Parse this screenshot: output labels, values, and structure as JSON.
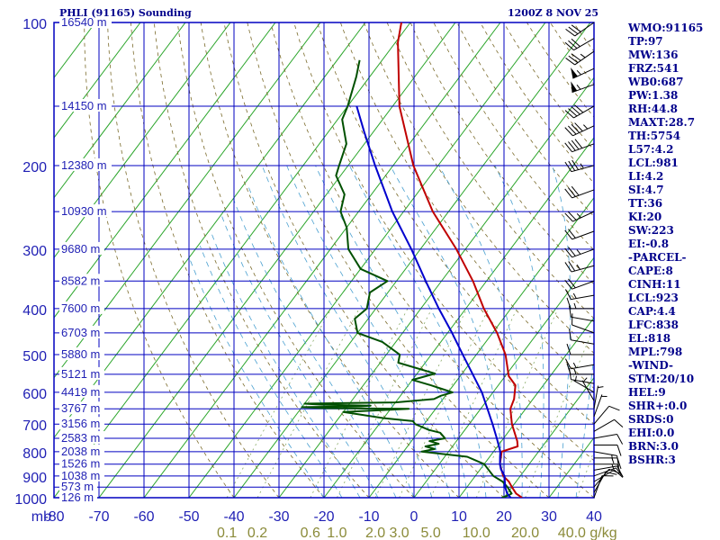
{
  "header": {
    "station": "PHLI (91165) Sounding",
    "time": "1200Z  8 NOV 25"
  },
  "colors": {
    "axis": "#0000c0",
    "label": "#1f1fb4",
    "isotherm": "#2aa52a",
    "dry_adiabat": "#7a6a2a",
    "moist_adiabat": "#4aa0d0",
    "mixing": "#88aa66",
    "temperature": "#c00000",
    "dewpoint": "#005000",
    "parcel": "#0000cd",
    "wind": "#000000",
    "mixing_label": "#8b8b3a"
  },
  "chart_data": {
    "type": "line",
    "title": "PHLI (91165) Sounding",
    "x_axis": {
      "label": "mb",
      "ticks": [
        -80,
        -70,
        -60,
        -50,
        -40,
        -30,
        -20,
        -10,
        0,
        10,
        20,
        30,
        40
      ],
      "range": [
        -80,
        40
      ]
    },
    "y_axis": {
      "scale": "log",
      "range": [
        1000,
        100
      ],
      "ticks": [
        100,
        200,
        300,
        400,
        500,
        600,
        700,
        800,
        900,
        1000
      ]
    },
    "mixing_ratio_ticks": {
      "unit": "g/kg",
      "labels": [
        "0.1",
        "0.2",
        "0.6",
        "1.0",
        "2.0",
        "3.0",
        "5.0",
        "10.0",
        "20.0",
        "40.0"
      ],
      "values": [
        0.1,
        0.2,
        0.6,
        1.0,
        2.0,
        3.0,
        5.0,
        10.0,
        20.0,
        40.0
      ]
    },
    "height_labels": [
      {
        "p": 1000,
        "h": "126 m"
      },
      {
        "p": 950,
        "h": "573 m"
      },
      {
        "p": 900,
        "h": "1038 m"
      },
      {
        "p": 850,
        "h": "1526 m"
      },
      {
        "p": 800,
        "h": "2038 m"
      },
      {
        "p": 750,
        "h": "2583 m"
      },
      {
        "p": 700,
        "h": "3156 m"
      },
      {
        "p": 650,
        "h": "3767 m"
      },
      {
        "p": 600,
        "h": "4419 m"
      },
      {
        "p": 550,
        "h": "5121 m"
      },
      {
        "p": 500,
        "h": "5880 m"
      },
      {
        "p": 450,
        "h": "6703 m"
      },
      {
        "p": 400,
        "h": "7600 m"
      },
      {
        "p": 350,
        "h": "8582 m"
      },
      {
        "p": 300,
        "h": "9680 m"
      },
      {
        "p": 250,
        "h": "10930 m"
      },
      {
        "p": 200,
        "h": "12380 m"
      },
      {
        "p": 150,
        "h": "14150 m"
      },
      {
        "p": 100,
        "h": "16540 m"
      }
    ],
    "series": [
      {
        "key": "temperature",
        "points": [
          [
            1000,
            24
          ],
          [
            980,
            22
          ],
          [
            950,
            20
          ],
          [
            925,
            18.4
          ],
          [
            900,
            16.2
          ],
          [
            850,
            13.5
          ],
          [
            800,
            11.8
          ],
          [
            780,
            14.5
          ],
          [
            760,
            13.5
          ],
          [
            700,
            9.5
          ],
          [
            650,
            6.6
          ],
          [
            620,
            5.8
          ],
          [
            580,
            3.8
          ],
          [
            555,
            0.8
          ],
          [
            500,
            -3.5
          ],
          [
            450,
            -9
          ],
          [
            400,
            -16
          ],
          [
            350,
            -23
          ],
          [
            300,
            -32
          ],
          [
            250,
            -43.5
          ],
          [
            200,
            -55.5
          ],
          [
            150,
            -68.5
          ],
          [
            110,
            -79.5
          ],
          [
            100,
            -82
          ]
        ]
      },
      {
        "key": "dewpoint",
        "points": [
          [
            1000,
            19.5
          ],
          [
            990,
            20.5
          ],
          [
            980,
            21
          ],
          [
            950,
            19
          ],
          [
            925,
            17
          ],
          [
            900,
            14
          ],
          [
            850,
            10
          ],
          [
            820,
            5
          ],
          [
            800,
            -6
          ],
          [
            790,
            -3.5
          ],
          [
            780,
            -6
          ],
          [
            770,
            -3.5
          ],
          [
            760,
            -6
          ],
          [
            750,
            -3
          ],
          [
            730,
            -5
          ],
          [
            720,
            -8
          ],
          [
            700,
            -12
          ],
          [
            690,
            -13
          ],
          [
            680,
            -20
          ],
          [
            660,
            -30
          ],
          [
            650,
            -16
          ],
          [
            648,
            -35
          ],
          [
            645,
            -40
          ],
          [
            642,
            -27
          ],
          [
            640,
            -25
          ],
          [
            637,
            -36
          ],
          [
            634,
            -40
          ],
          [
            630,
            -20
          ],
          [
            620,
            -12
          ],
          [
            610,
            -11
          ],
          [
            600,
            -9
          ],
          [
            590,
            -12
          ],
          [
            580,
            -15
          ],
          [
            565,
            -20
          ],
          [
            548,
            -16
          ],
          [
            520,
            -26
          ],
          [
            500,
            -27
          ],
          [
            470,
            -33
          ],
          [
            450,
            -40
          ],
          [
            420,
            -43
          ],
          [
            400,
            -42
          ],
          [
            370,
            -44
          ],
          [
            350,
            -42
          ],
          [
            330,
            -50
          ],
          [
            300,
            -56
          ],
          [
            270,
            -60
          ],
          [
            250,
            -64
          ],
          [
            230,
            -66
          ],
          [
            210,
            -71
          ],
          [
            200,
            -72
          ],
          [
            180,
            -74
          ],
          [
            160,
            -79
          ],
          [
            150,
            -80
          ],
          [
            130,
            -83
          ],
          [
            120,
            -85
          ]
        ]
      },
      {
        "key": "parcel",
        "points": [
          [
            1000,
            21.5
          ],
          [
            980,
            20
          ],
          [
            950,
            18.5
          ],
          [
            925,
            17.5
          ],
          [
            900,
            16.5
          ],
          [
            870,
            14.5
          ],
          [
            850,
            13.5
          ],
          [
            820,
            12.3
          ],
          [
            800,
            11.5
          ],
          [
            750,
            8.5
          ],
          [
            700,
            5.2
          ],
          [
            650,
            1.5
          ],
          [
            600,
            -2.5
          ],
          [
            550,
            -7.5
          ],
          [
            500,
            -13
          ],
          [
            450,
            -19
          ],
          [
            400,
            -26
          ],
          [
            350,
            -33.5
          ],
          [
            300,
            -42
          ],
          [
            250,
            -52.5
          ],
          [
            200,
            -64
          ],
          [
            170,
            -72
          ],
          [
            150,
            -78
          ]
        ]
      }
    ],
    "wind_barbs": [
      {
        "p": 1000,
        "dir": 20,
        "spd": 10
      },
      {
        "p": 975,
        "dir": 30,
        "spd": 10
      },
      {
        "p": 950,
        "dir": 40,
        "spd": 10
      },
      {
        "p": 925,
        "dir": 60,
        "spd": 10
      },
      {
        "p": 900,
        "dir": 70,
        "spd": 10
      },
      {
        "p": 875,
        "dir": 80,
        "spd": 10
      },
      {
        "p": 850,
        "dir": 90,
        "spd": 15
      },
      {
        "p": 825,
        "dir": 90,
        "spd": 15
      },
      {
        "p": 800,
        "dir": 100,
        "spd": 15
      },
      {
        "p": 775,
        "dir": 90,
        "spd": 10
      },
      {
        "p": 750,
        "dir": 80,
        "spd": 10
      },
      {
        "p": 725,
        "dir": 60,
        "spd": 10
      },
      {
        "p": 700,
        "dir": 40,
        "spd": 10
      },
      {
        "p": 675,
        "dir": 20,
        "spd": 5
      },
      {
        "p": 650,
        "dir": 10,
        "spd": 5
      },
      {
        "p": 625,
        "dir": 330,
        "spd": 5
      },
      {
        "p": 600,
        "dir": 300,
        "spd": 5
      },
      {
        "p": 575,
        "dir": 280,
        "spd": 10
      },
      {
        "p": 550,
        "dir": 270,
        "spd": 15
      },
      {
        "p": 525,
        "dir": 260,
        "spd": 15
      },
      {
        "p": 500,
        "dir": 270,
        "spd": 10
      },
      {
        "p": 475,
        "dir": 280,
        "spd": 10
      },
      {
        "p": 450,
        "dir": 290,
        "spd": 10
      },
      {
        "p": 425,
        "dir": 280,
        "spd": 10
      },
      {
        "p": 400,
        "dir": 270,
        "spd": 15
      },
      {
        "p": 375,
        "dir": 260,
        "spd": 15
      },
      {
        "p": 350,
        "dir": 250,
        "spd": 20
      },
      {
        "p": 325,
        "dir": 255,
        "spd": 25
      },
      {
        "p": 300,
        "dir": 250,
        "spd": 25
      },
      {
        "p": 275,
        "dir": 250,
        "spd": 20
      },
      {
        "p": 250,
        "dir": 245,
        "spd": 25
      },
      {
        "p": 225,
        "dir": 250,
        "spd": 30
      },
      {
        "p": 200,
        "dir": 255,
        "spd": 35
      },
      {
        "p": 180,
        "dir": 250,
        "spd": 40
      },
      {
        "p": 165,
        "dir": 245,
        "spd": 45
      },
      {
        "p": 150,
        "dir": 240,
        "spd": 40
      },
      {
        "p": 135,
        "dir": 250,
        "spd": 55
      },
      {
        "p": 125,
        "dir": 245,
        "spd": 55
      },
      {
        "p": 115,
        "dir": 235,
        "spd": 35
      },
      {
        "p": 108,
        "dir": 240,
        "spd": 30
      },
      {
        "p": 100,
        "dir": 235,
        "spd": 30
      }
    ]
  },
  "indices": [
    "WMO:91165",
    "TP:97",
    "MW:136",
    "FRZ:541",
    "WB0:687",
    "PW:1.38",
    "RH:44.8",
    "MAXT:28.7",
    "TH:5754",
    "L57:4.2",
    "LCL:981",
    "LI:4.2",
    "SI:4.7",
    "TT:36",
    "KI:20",
    "SW:223",
    "EI:-0.8",
    "-PARCEL-",
    "CAPE:8",
    "CINH:11",
    "LCL:923",
    "CAP:4.4",
    "LFC:838",
    "EL:818",
    "MPL:798",
    "-WIND-",
    "STM:20/10",
    "HEL:9",
    "SHR+:0.0",
    "SRDS:0",
    "EHI:0.0",
    "BRN:3.0",
    "BSHR:3"
  ]
}
